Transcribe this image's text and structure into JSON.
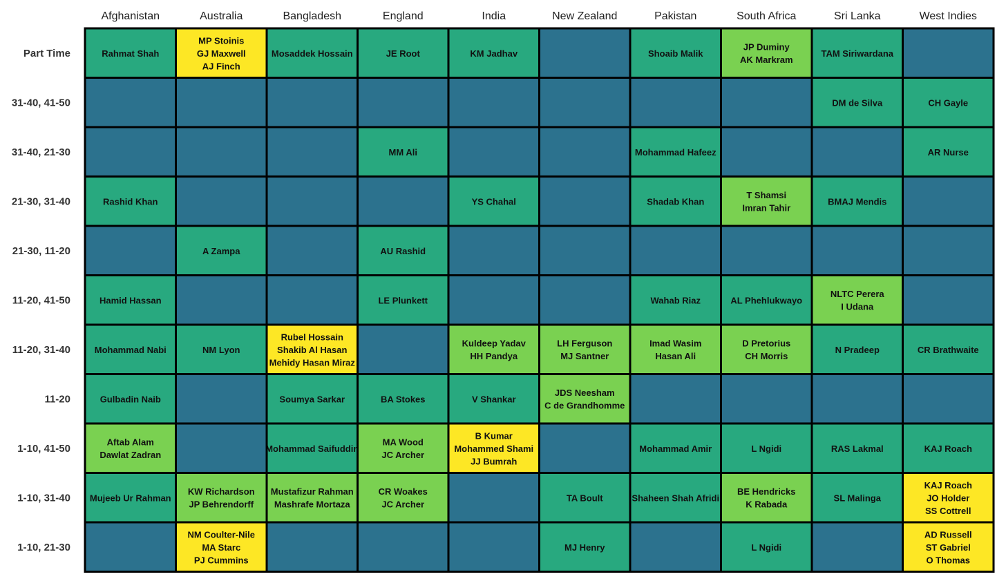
{
  "chart_data": {
    "type": "heatmap",
    "title": "",
    "xlabel": "",
    "ylabel": "",
    "columns": [
      "Afghanistan",
      "Australia",
      "Bangladesh",
      "England",
      "India",
      "New Zealand",
      "Pakistan",
      "South Africa",
      "Sri Lanka",
      "West Indies"
    ],
    "rows": [
      "Part Time",
      "31-40, 41-50",
      "31-40, 21-30",
      "21-30, 31-40",
      "21-30, 11-20",
      "11-20, 41-50",
      "11-20, 31-40",
      "11-20",
      "1-10, 41-50",
      "1-10, 31-40",
      "1-10, 21-30"
    ],
    "color_scale": {
      "0": "#2c728e",
      "1": "#28a97f",
      "2": "#7ad151",
      "3": "#fde725"
    },
    "cells": [
      [
        [
          "Rahmat Shah"
        ],
        [
          "MP Stoinis",
          "GJ Maxwell",
          "AJ Finch"
        ],
        [
          "Mosaddek Hossain"
        ],
        [
          "JE Root"
        ],
        [
          "KM Jadhav"
        ],
        [],
        [
          "Shoaib Malik"
        ],
        [
          "JP Duminy",
          "AK Markram"
        ],
        [
          "TAM Siriwardana"
        ],
        []
      ],
      [
        [],
        [],
        [],
        [],
        [],
        [],
        [],
        [],
        [
          "DM de Silva"
        ],
        [
          "CH Gayle"
        ]
      ],
      [
        [],
        [],
        [],
        [
          "MM Ali"
        ],
        [],
        [],
        [
          "Mohammad Hafeez"
        ],
        [],
        [],
        [
          "AR Nurse"
        ]
      ],
      [
        [
          "Rashid Khan"
        ],
        [],
        [],
        [],
        [
          "YS Chahal"
        ],
        [],
        [
          "Shadab Khan"
        ],
        [
          "T Shamsi",
          "Imran Tahir"
        ],
        [
          "BMAJ Mendis"
        ],
        []
      ],
      [
        [],
        [
          "A Zampa"
        ],
        [],
        [
          "AU Rashid"
        ],
        [],
        [],
        [],
        [],
        [],
        []
      ],
      [
        [
          "Hamid Hassan"
        ],
        [],
        [],
        [
          "LE Plunkett"
        ],
        [],
        [],
        [
          "Wahab Riaz"
        ],
        [
          "AL Phehlukwayo"
        ],
        [
          "NLTC Perera",
          "I Udana"
        ],
        []
      ],
      [
        [
          "Mohammad Nabi"
        ],
        [
          "NM Lyon"
        ],
        [
          "Rubel Hossain",
          "Shakib Al Hasan",
          "Mehidy Hasan Miraz"
        ],
        [],
        [
          "Kuldeep Yadav",
          "HH Pandya"
        ],
        [
          "LH Ferguson",
          "MJ Santner"
        ],
        [
          "Imad Wasim",
          "Hasan Ali"
        ],
        [
          "D Pretorius",
          "CH Morris"
        ],
        [
          "N Pradeep"
        ],
        [
          "CR Brathwaite"
        ]
      ],
      [
        [
          "Gulbadin Naib"
        ],
        [],
        [
          "Soumya Sarkar"
        ],
        [
          "BA Stokes"
        ],
        [
          "V Shankar"
        ],
        [
          "JDS Neesham",
          "C de Grandhomme"
        ],
        [],
        [],
        [],
        []
      ],
      [
        [
          "Aftab Alam",
          "Dawlat Zadran"
        ],
        [],
        [
          "Mohammad Saifuddin"
        ],
        [
          "MA Wood",
          "JC Archer"
        ],
        [
          "B Kumar",
          "Mohammed Shami",
          "JJ Bumrah"
        ],
        [],
        [
          "Mohammad Amir"
        ],
        [
          "L Ngidi"
        ],
        [
          "RAS Lakmal"
        ],
        [
          "KAJ Roach"
        ]
      ],
      [
        [
          "Mujeeb Ur Rahman"
        ],
        [
          "KW Richardson",
          "JP Behrendorff"
        ],
        [
          "Mustafizur Rahman",
          "Mashrafe Mortaza"
        ],
        [
          "CR Woakes",
          "JC Archer"
        ],
        [],
        [
          "TA Boult"
        ],
        [
          "Shaheen Shah Afridi"
        ],
        [
          "BE Hendricks",
          "K Rabada"
        ],
        [
          "SL Malinga"
        ],
        [
          "KAJ Roach",
          "JO Holder",
          "SS Cottrell"
        ]
      ],
      [
        [],
        [
          "NM Coulter-Nile",
          "MA Starc",
          "PJ Cummins"
        ],
        [],
        [],
        [],
        [
          "MJ Henry"
        ],
        [],
        [
          "L Ngidi"
        ],
        [],
        [
          "AD Russell",
          "ST Gabriel",
          "O Thomas"
        ]
      ]
    ]
  }
}
